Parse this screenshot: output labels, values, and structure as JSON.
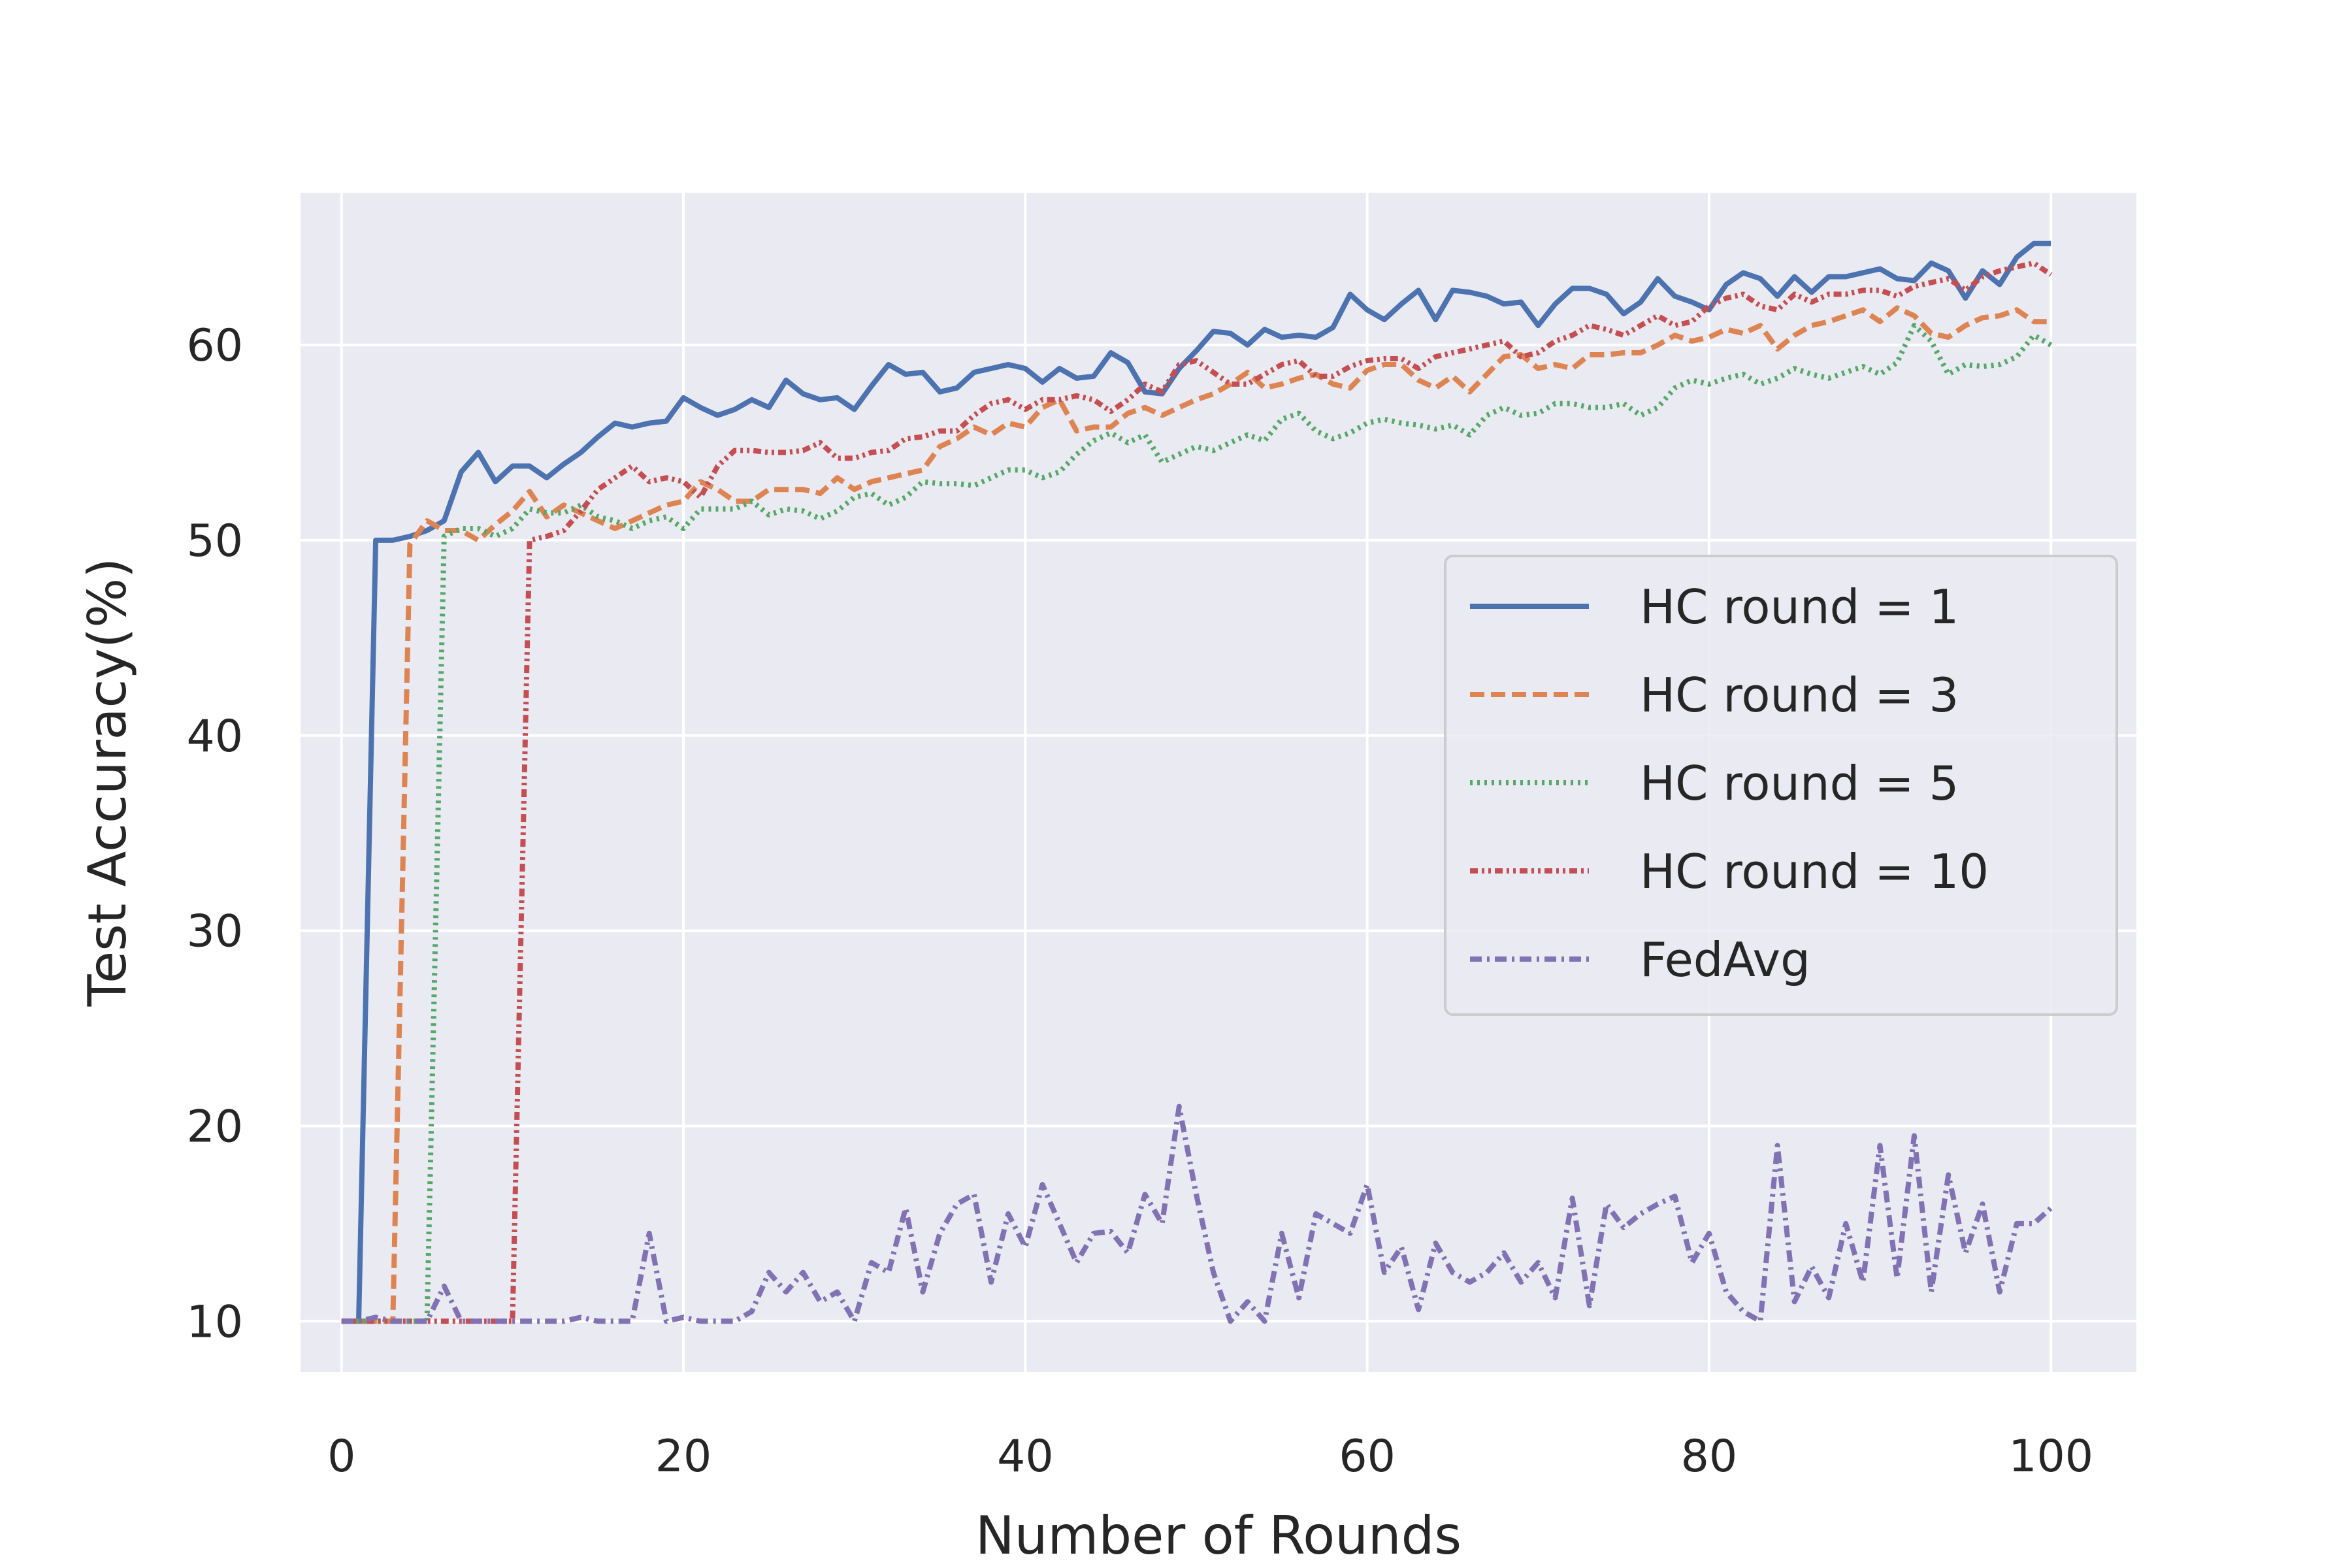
{
  "chart_data": {
    "type": "line",
    "title": "",
    "xlabel": "Number of Rounds",
    "ylabel": "Test Accuracy(%)",
    "xlim": [
      -2.4,
      105
    ],
    "ylim": [
      7.4,
      67.8
    ],
    "xticks": [
      "0",
      "20",
      "40",
      "60",
      "80",
      "100"
    ],
    "yticks": [
      "10",
      "20",
      "30",
      "40",
      "50",
      "60"
    ],
    "grid": true,
    "legend_position": "center-right",
    "background_color": "#eaeaf2",
    "series": [
      {
        "name": "HC round = 1",
        "color": "#4c72b0",
        "dash": "solid",
        "x": [
          0,
          1,
          2,
          3,
          4,
          5,
          6,
          7,
          8,
          9,
          10,
          11,
          12,
          13,
          14,
          15,
          16,
          17,
          18,
          19,
          20,
          21,
          22,
          23,
          24,
          25,
          26,
          27,
          28,
          29,
          30,
          31,
          32,
          33,
          34,
          35,
          36,
          37,
          38,
          39,
          40,
          41,
          42,
          43,
          44,
          45,
          46,
          47,
          48,
          49,
          50,
          51,
          52,
          53,
          54,
          55,
          56,
          57,
          58,
          59,
          60,
          61,
          62,
          63,
          64,
          65,
          66,
          67,
          68,
          69,
          70,
          71,
          72,
          73,
          74,
          75,
          76,
          77,
          78,
          79,
          80,
          81,
          82,
          83,
          84,
          85,
          86,
          87,
          88,
          89,
          90,
          91,
          92,
          93,
          94,
          95,
          96,
          97,
          98,
          99,
          100
        ],
        "values": [
          10,
          10,
          50,
          50,
          50.2,
          50.5,
          51,
          53.5,
          54.5,
          53,
          53.8,
          53.8,
          53.2,
          53.9,
          54.5,
          55.3,
          56,
          55.8,
          56,
          56.1,
          57.3,
          56.8,
          56.4,
          56.7,
          57.2,
          56.8,
          58.2,
          57.5,
          57.2,
          57.3,
          56.7,
          57.9,
          59,
          58.5,
          58.6,
          57.6,
          57.8,
          58.6,
          58.8,
          59,
          58.8,
          58.1,
          58.8,
          58.3,
          58.4,
          59.6,
          59.1,
          57.6,
          57.5,
          58.8,
          59.7,
          60.7,
          60.6,
          60,
          60.8,
          60.4,
          60.5,
          60.4,
          60.9,
          62.6,
          61.8,
          61.3,
          62.1,
          62.8,
          61.3,
          62.8,
          62.7,
          62.5,
          62.1,
          62.2,
          61,
          62.1,
          62.9,
          62.9,
          62.6,
          61.6,
          62.2,
          63.4,
          62.5,
          62.2,
          61.8,
          63.1,
          63.7,
          63.4,
          62.5,
          63.5,
          62.7,
          63.5,
          63.5,
          63.7,
          63.9,
          63.4,
          63.3,
          64.2,
          63.8,
          62.4,
          63.8,
          63.1,
          64.5,
          65.2,
          65.2
        ]
      },
      {
        "name": "HC round = 3",
        "color": "#dd8452",
        "dash": "dashed",
        "x": [
          0,
          1,
          2,
          3,
          4,
          5,
          6,
          7,
          8,
          9,
          10,
          11,
          12,
          13,
          14,
          15,
          16,
          17,
          18,
          19,
          20,
          21,
          22,
          23,
          24,
          25,
          26,
          27,
          28,
          29,
          30,
          31,
          32,
          33,
          34,
          35,
          36,
          37,
          38,
          39,
          40,
          41,
          42,
          43,
          44,
          45,
          46,
          47,
          48,
          49,
          50,
          51,
          52,
          53,
          54,
          55,
          56,
          57,
          58,
          59,
          60,
          61,
          62,
          63,
          64,
          65,
          66,
          67,
          68,
          69,
          70,
          71,
          72,
          73,
          74,
          75,
          76,
          77,
          78,
          79,
          80,
          81,
          82,
          83,
          84,
          85,
          86,
          87,
          88,
          89,
          90,
          91,
          92,
          93,
          94,
          95,
          96,
          97,
          98,
          99,
          100
        ],
        "values": [
          10,
          10,
          10,
          10,
          49.8,
          51,
          50.5,
          50.5,
          50,
          50.8,
          51.5,
          52.5,
          51.2,
          51.8,
          51.4,
          51,
          50.6,
          51,
          51.4,
          51.8,
          52,
          53,
          52.6,
          52,
          52,
          52.6,
          52.6,
          52.6,
          52.4,
          53.2,
          52.6,
          53,
          53.2,
          53.4,
          53.6,
          54.8,
          55.2,
          55.8,
          55.4,
          56,
          55.8,
          56.8,
          57.2,
          55.6,
          55.8,
          55.8,
          56.5,
          56.8,
          56.4,
          56.8,
          57.2,
          57.5,
          58,
          58.6,
          57.8,
          58,
          58.3,
          58.5,
          58,
          57.8,
          58.7,
          59,
          59,
          58.2,
          57.8,
          58.4,
          57.6,
          58.5,
          59.4,
          59.5,
          58.8,
          59,
          58.8,
          59.5,
          59.5,
          59.6,
          59.6,
          60,
          60.5,
          60.2,
          60.4,
          60.8,
          60.6,
          61,
          59.8,
          60.5,
          61,
          61.2,
          61.5,
          61.8,
          61.2,
          61.9,
          61.5,
          60.6,
          60.4,
          61,
          61.4,
          61.5,
          61.8,
          61.2,
          61.2
        ]
      },
      {
        "name": "HC round = 5",
        "color": "#55a868",
        "dash": "dotted",
        "x": [
          0,
          1,
          2,
          3,
          4,
          5,
          6,
          7,
          8,
          9,
          10,
          11,
          12,
          13,
          14,
          15,
          16,
          17,
          18,
          19,
          20,
          21,
          22,
          23,
          24,
          25,
          26,
          27,
          28,
          29,
          30,
          31,
          32,
          33,
          34,
          35,
          36,
          37,
          38,
          39,
          40,
          41,
          42,
          43,
          44,
          45,
          46,
          47,
          48,
          49,
          50,
          51,
          52,
          53,
          54,
          55,
          56,
          57,
          58,
          59,
          60,
          61,
          62,
          63,
          64,
          65,
          66,
          67,
          68,
          69,
          70,
          71,
          72,
          73,
          74,
          75,
          76,
          77,
          78,
          79,
          80,
          81,
          82,
          83,
          84,
          85,
          86,
          87,
          88,
          89,
          90,
          91,
          92,
          93,
          94,
          95,
          96,
          97,
          98,
          99,
          100
        ],
        "values": [
          10,
          10,
          10,
          10,
          10,
          10,
          50.2,
          50.6,
          50.6,
          50.2,
          50.6,
          51.6,
          51.4,
          51.4,
          51.8,
          51.2,
          51,
          50.6,
          51,
          51.2,
          50.6,
          51.6,
          51.6,
          51.6,
          52,
          51.3,
          51.6,
          51.5,
          51.1,
          51.5,
          52.2,
          52.4,
          51.8,
          52.2,
          53,
          52.9,
          52.9,
          52.8,
          53.2,
          53.6,
          53.6,
          53.2,
          53.5,
          54.4,
          55.1,
          55.5,
          55,
          55.4,
          54,
          54.4,
          54.8,
          54.6,
          55,
          55.4,
          55.1,
          56.2,
          56.5,
          55.6,
          55.2,
          55.5,
          56,
          56.2,
          56,
          55.9,
          55.7,
          55.9,
          55.4,
          56.4,
          56.8,
          56.4,
          56.5,
          57,
          57,
          56.8,
          56.8,
          57,
          56.4,
          56.8,
          57.8,
          58.2,
          58,
          58.3,
          58.5,
          58,
          58.3,
          58.8,
          58.5,
          58.3,
          58.6,
          58.9,
          58.5,
          59.1,
          61,
          60.2,
          58.5,
          59,
          58.9,
          59,
          59.4,
          60.5,
          60
        ]
      },
      {
        "name": "HC round = 10",
        "color": "#c44e52",
        "dash": "dashdotdot",
        "x": [
          0,
          1,
          2,
          3,
          4,
          5,
          6,
          7,
          8,
          9,
          10,
          11,
          12,
          13,
          14,
          15,
          16,
          17,
          18,
          19,
          20,
          21,
          22,
          23,
          24,
          25,
          26,
          27,
          28,
          29,
          30,
          31,
          32,
          33,
          34,
          35,
          36,
          37,
          38,
          39,
          40,
          41,
          42,
          43,
          44,
          45,
          46,
          47,
          48,
          49,
          50,
          51,
          52,
          53,
          54,
          55,
          56,
          57,
          58,
          59,
          60,
          61,
          62,
          63,
          64,
          65,
          66,
          67,
          68,
          69,
          70,
          71,
          72,
          73,
          74,
          75,
          76,
          77,
          78,
          79,
          80,
          81,
          82,
          83,
          84,
          85,
          86,
          87,
          88,
          89,
          90,
          91,
          92,
          93,
          94,
          95,
          96,
          97,
          98,
          99,
          100
        ],
        "values": [
          10,
          10,
          10,
          10,
          10,
          10,
          10,
          10,
          10,
          10,
          10,
          50,
          50.2,
          50.5,
          51.5,
          52.6,
          53.2,
          53.8,
          53,
          53.2,
          53,
          52.2,
          53.8,
          54.6,
          54.6,
          54.5,
          54.5,
          54.6,
          55,
          54.2,
          54.2,
          54.5,
          54.6,
          55.2,
          55.3,
          55.6,
          55.6,
          56.4,
          57,
          57.2,
          56.7,
          57.2,
          57.2,
          57.4,
          57.2,
          56.6,
          57.2,
          58,
          57.6,
          59,
          59.2,
          58.6,
          58,
          58,
          58.5,
          59,
          59.2,
          58.4,
          58.4,
          58.9,
          59.2,
          59.3,
          59.3,
          58.8,
          59.4,
          59.6,
          59.8,
          60,
          60.2,
          59.4,
          59.6,
          60.2,
          60.5,
          61,
          60.8,
          60.5,
          61,
          61.5,
          61,
          61.2,
          62,
          62.4,
          62.6,
          62,
          61.8,
          62.6,
          62.2,
          62.6,
          62.6,
          62.8,
          62.8,
          62.5,
          63,
          63.2,
          63.4,
          62.8,
          63.5,
          63.8,
          64,
          64.2,
          63.6
        ]
      },
      {
        "name": "FedAvg",
        "color": "#8172b3",
        "dash": "dashdot",
        "x": [
          0,
          1,
          2,
          3,
          4,
          5,
          6,
          7,
          8,
          9,
          10,
          11,
          12,
          13,
          14,
          15,
          16,
          17,
          18,
          19,
          20,
          21,
          22,
          23,
          24,
          25,
          26,
          27,
          28,
          29,
          30,
          31,
          32,
          33,
          34,
          35,
          36,
          37,
          38,
          39,
          40,
          41,
          42,
          43,
          44,
          45,
          46,
          47,
          48,
          49,
          50,
          51,
          52,
          53,
          54,
          55,
          56,
          57,
          58,
          59,
          60,
          61,
          62,
          63,
          64,
          65,
          66,
          67,
          68,
          69,
          70,
          71,
          72,
          73,
          74,
          75,
          76,
          77,
          78,
          79,
          80,
          81,
          82,
          83,
          84,
          85,
          86,
          87,
          88,
          89,
          90,
          91,
          92,
          93,
          94,
          95,
          96,
          97,
          98,
          99,
          100
        ],
        "values": [
          10,
          10,
          10.2,
          10,
          10,
          10,
          11.8,
          10,
          10,
          10,
          10,
          10,
          10,
          10,
          10.2,
          10,
          10,
          10,
          14.5,
          10,
          10.2,
          10,
          10,
          10,
          10.5,
          12.5,
          11.5,
          12.5,
          11,
          11.5,
          10,
          13,
          12.5,
          15.8,
          11.5,
          14.5,
          16,
          16.5,
          12,
          15.5,
          13.8,
          17,
          15,
          13,
          14.5,
          14.6,
          13.5,
          16.5,
          15,
          21,
          16.5,
          12.5,
          10,
          11,
          10,
          14.5,
          11.2,
          15.5,
          15,
          14.5,
          17,
          12.5,
          13.8,
          10.6,
          14,
          12.5,
          12,
          12.5,
          13.5,
          12,
          13,
          11.2,
          16.3,
          10.8,
          16,
          14.8,
          15.5,
          16,
          16.4,
          13,
          14.5,
          11.5,
          10.5,
          10,
          19,
          11,
          12.8,
          11.2,
          15,
          12,
          19,
          12.2,
          19.5,
          11.5,
          17.5,
          13.5,
          16,
          11.5,
          15,
          15,
          15.8
        ]
      }
    ]
  }
}
